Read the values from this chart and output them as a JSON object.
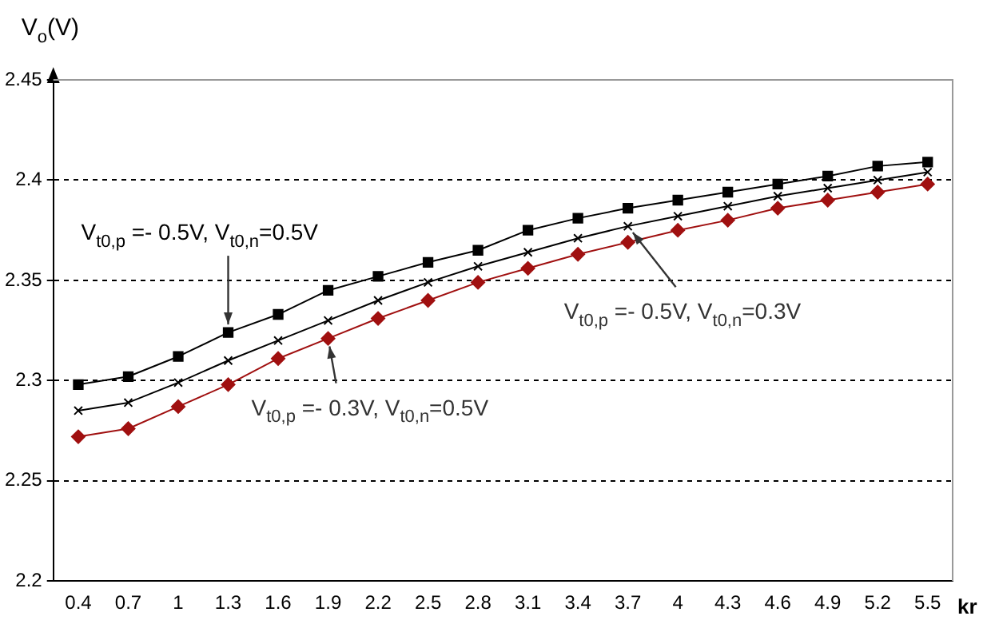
{
  "chart_data": {
    "type": "line",
    "xlabel": "kr",
    "ylabel": "V$_{o}$(V)",
    "categories": [
      "0.4",
      "0.7",
      "1",
      "1.3",
      "1.6",
      "1.9",
      "2.2",
      "2.5",
      "2.8",
      "3.1",
      "3.4",
      "3.7",
      "4",
      "4.3",
      "4.6",
      "4.9",
      "5.2",
      "5.5"
    ],
    "series": [
      {
        "color": "#000000",
        "marker": "square",
        "values": [
          2.298,
          2.302,
          2.312,
          2.324,
          2.333,
          2.345,
          2.352,
          2.359,
          2.365,
          2.375,
          2.381,
          2.386,
          2.39,
          2.394,
          2.398,
          2.402,
          2.407,
          2.409
        ]
      },
      {
        "color": "#000000",
        "marker": "cross",
        "values": [
          2.285,
          2.289,
          2.299,
          2.31,
          2.32,
          2.33,
          2.34,
          2.349,
          2.357,
          2.364,
          2.371,
          2.377,
          2.382,
          2.387,
          2.392,
          2.396,
          2.4,
          2.404
        ]
      },
      {
        "color": "#a01010",
        "marker": "diamond",
        "values": [
          2.272,
          2.276,
          2.287,
          2.298,
          2.311,
          2.321,
          2.331,
          2.34,
          2.349,
          2.356,
          2.363,
          2.369,
          2.375,
          2.38,
          2.386,
          2.39,
          2.394,
          2.398
        ]
      }
    ],
    "annotations": [
      {
        "text": "V$_{t0,p}$ =- 0.5V, V$_{t0,n}$=0.5V",
        "x": "1.3",
        "y": 2.324
      },
      {
        "text": "V$_{t0,p}$ =- 0.3V, V$_{t0,n}$=0.5V",
        "x": "1.9",
        "y": 2.321
      },
      {
        "text": "V$_{t0,p}$ =- 0.5V, V$_{t0,n}$=0.3V",
        "x": "3.7",
        "y": 2.377
      }
    ],
    "ylim": [
      2.2,
      2.45
    ],
    "yticks": [
      2.2,
      2.25,
      2.3,
      2.35,
      2.4,
      2.45
    ],
    "grid": "y",
    "legend": false,
    "line_style": "solid"
  }
}
